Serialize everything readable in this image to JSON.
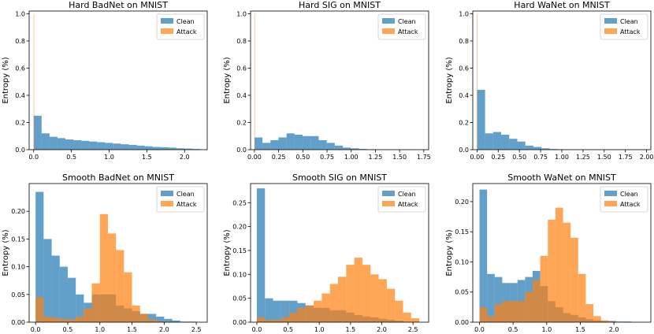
{
  "colors": {
    "clean": "#1f77b4",
    "attack": "#ff7f0e"
  },
  "chart_data": [
    {
      "type": "histogram",
      "title": "Hard BadNet on MNIST",
      "ylabel": "Entropy (%)",
      "xlim": [
        -0.06,
        2.3
      ],
      "ylim": [
        0,
        1.02
      ],
      "xticks": [
        "0.0",
        "0.5",
        "1.0",
        "1.5",
        "2.0"
      ],
      "xtick_values": [
        0,
        0.5,
        1.0,
        1.5,
        2.0
      ],
      "yticks": [
        "0.0",
        "0.2",
        "0.4",
        "0.6",
        "0.8",
        "1.0"
      ],
      "ytick_values": [
        0,
        0.2,
        0.4,
        0.6,
        0.8,
        1.0
      ],
      "legend": [
        "Clean",
        "Attack"
      ],
      "series": [
        {
          "name": "Clean",
          "bin_start": 0.0,
          "bin_width": 0.105,
          "values": [
            0.25,
            0.12,
            0.095,
            0.085,
            0.075,
            0.07,
            0.065,
            0.06,
            0.055,
            0.05,
            0.045,
            0.04,
            0.035,
            0.03,
            0.025,
            0.02,
            0.018,
            0.015,
            0.01,
            0.008,
            0.005
          ]
        },
        {
          "name": "Attack",
          "bin_start": 0.0,
          "bin_width": 0.005,
          "values": [
            1.0
          ]
        }
      ]
    },
    {
      "type": "histogram",
      "title": "Hard SIG on MNIST",
      "ylabel": "Entropy (%)",
      "xlim": [
        -0.04,
        1.8
      ],
      "ylim": [
        0,
        1.02
      ],
      "xticks": [
        "0.00",
        "0.25",
        "0.50",
        "0.75",
        "1.00",
        "1.25",
        "1.50",
        "1.75"
      ],
      "xtick_values": [
        0,
        0.25,
        0.5,
        0.75,
        1.0,
        1.25,
        1.5,
        1.75
      ],
      "yticks": [
        "0.0",
        "0.2",
        "0.4",
        "0.6",
        "0.8",
        "1.0"
      ],
      "ytick_values": [
        0,
        0.2,
        0.4,
        0.6,
        0.8,
        1.0
      ],
      "legend": [
        "Clean",
        "Attack"
      ],
      "series": [
        {
          "name": "Clean",
          "bin_start": 0.0,
          "bin_width": 0.083,
          "values": [
            0.09,
            0.05,
            0.07,
            0.09,
            0.12,
            0.11,
            0.1,
            0.1,
            0.07,
            0.05,
            0.03,
            0.015,
            0.01,
            0.005,
            0.003,
            0.002,
            0.001,
            0.001,
            0.001,
            0.001
          ]
        },
        {
          "name": "Attack",
          "bin_start": 0.0,
          "bin_width": 0.004,
          "values": [
            1.0
          ]
        }
      ]
    },
    {
      "type": "histogram",
      "title": "Hard WaNet on MNIST",
      "ylabel": "Entropy (%)",
      "xlim": [
        -0.05,
        2.05
      ],
      "ylim": [
        0,
        1.02
      ],
      "xticks": [
        "0.00",
        "0.25",
        "0.50",
        "0.75",
        "1.00",
        "1.25",
        "1.50",
        "1.75",
        "2.00"
      ],
      "xtick_values": [
        0,
        0.25,
        0.5,
        0.75,
        1.0,
        1.25,
        1.5,
        1.75,
        2.0
      ],
      "yticks": [
        "0.0",
        "0.2",
        "0.4",
        "0.6",
        "0.8",
        "1.0"
      ],
      "ytick_values": [
        0,
        0.2,
        0.4,
        0.6,
        0.8,
        1.0
      ],
      "legend": [
        "Clean",
        "Attack"
      ],
      "series": [
        {
          "name": "Clean",
          "bin_start": 0.0,
          "bin_width": 0.095,
          "values": [
            0.44,
            0.12,
            0.13,
            0.11,
            0.08,
            0.06,
            0.03,
            0.02,
            0.01,
            0.005,
            0.003,
            0.002,
            0.001,
            0.001,
            0.001,
            0.001,
            0.001,
            0.001,
            0.001,
            0.001,
            0.001
          ]
        },
        {
          "name": "Attack",
          "bin_start": 0.0,
          "bin_width": 0.005,
          "values": [
            1.0
          ]
        }
      ]
    },
    {
      "type": "histogram",
      "title": "Smooth BadNet on MNIST",
      "ylabel": "Entropy (%)",
      "xlim": [
        -0.1,
        2.67
      ],
      "ylim": [
        0,
        0.25
      ],
      "xticks": [
        "0.0",
        "0.5",
        "1.0",
        "1.5",
        "2.0",
        "2.5"
      ],
      "xtick_values": [
        0,
        0.5,
        1.0,
        1.5,
        2.0,
        2.5
      ],
      "yticks": [
        "0.00",
        "0.05",
        "0.10",
        "0.15",
        "0.20"
      ],
      "ytick_values": [
        0,
        0.05,
        0.1,
        0.15,
        0.2
      ],
      "legend": [
        "Clean",
        "Attack"
      ],
      "series": [
        {
          "name": "Clean",
          "bin_start": 0.0,
          "bin_width": 0.125,
          "values": [
            0.235,
            0.15,
            0.12,
            0.1,
            0.08,
            0.05,
            0.035,
            0.05,
            0.05,
            0.05,
            0.03,
            0.025,
            0.02,
            0.015,
            0.015,
            0.01,
            0.006,
            0.003,
            0.001,
            0.001
          ]
        },
        {
          "name": "Attack",
          "bin_start": 0.0,
          "bin_width": 0.125,
          "values": [
            0.045,
            0.01,
            0.008,
            0.006,
            0.005,
            0.01,
            0.025,
            0.07,
            0.195,
            0.16,
            0.13,
            0.09,
            0.03,
            0.015,
            0.005,
            0.002,
            0.001,
            0.0,
            0.0,
            0.0
          ]
        }
      ]
    },
    {
      "type": "histogram",
      "title": "Smooth SIG on MNIST",
      "ylabel": "Entropy (%)",
      "xlim": [
        -0.1,
        2.75
      ],
      "ylim": [
        0,
        0.29
      ],
      "xticks": [
        "0.0",
        "0.5",
        "1.0",
        "1.5",
        "2.0",
        "2.5"
      ],
      "xtick_values": [
        0,
        0.5,
        1.0,
        1.5,
        2.0,
        2.5
      ],
      "yticks": [
        "0.00",
        "0.05",
        "0.10",
        "0.15",
        "0.20",
        "0.25"
      ],
      "ytick_values": [
        0,
        0.05,
        0.1,
        0.15,
        0.2,
        0.25
      ],
      "legend": [
        "Clean",
        "Attack"
      ],
      "series": [
        {
          "name": "Clean",
          "bin_start": 0.0,
          "bin_width": 0.13,
          "values": [
            0.28,
            0.05,
            0.045,
            0.045,
            0.045,
            0.04,
            0.035,
            0.03,
            0.03,
            0.025,
            0.025,
            0.02,
            0.015,
            0.012,
            0.01,
            0.007,
            0.005,
            0.003,
            0.001,
            0.001
          ]
        },
        {
          "name": "Attack",
          "bin_start": 0.0,
          "bin_width": 0.13,
          "values": [
            0.01,
            0.005,
            0.005,
            0.01,
            0.02,
            0.03,
            0.035,
            0.045,
            0.06,
            0.08,
            0.095,
            0.12,
            0.135,
            0.12,
            0.1,
            0.09,
            0.07,
            0.045,
            0.02,
            0.008
          ]
        }
      ]
    },
    {
      "type": "histogram",
      "title": "Smooth WaNet on MNIST",
      "ylabel": "Entropy (%)",
      "xlim": [
        -0.1,
        2.55
      ],
      "ylim": [
        0,
        0.23
      ],
      "xticks": [
        "0.0",
        "0.5",
        "1.0",
        "1.5",
        "2.0"
      ],
      "xtick_values": [
        0,
        0.5,
        1.0,
        1.5,
        2.0
      ],
      "yticks": [
        "0.00",
        "0.05",
        "0.10",
        "0.15",
        "0.20"
      ],
      "ytick_values": [
        0,
        0.05,
        0.1,
        0.15,
        0.2
      ],
      "legend": [
        "Clean",
        "Attack"
      ],
      "series": [
        {
          "name": "Clean",
          "bin_start": 0.0,
          "bin_width": 0.113,
          "values": [
            0.22,
            0.08,
            0.075,
            0.065,
            0.065,
            0.07,
            0.075,
            0.085,
            0.06,
            0.035,
            0.025,
            0.015,
            0.012,
            0.008,
            0.005,
            0.003,
            0.002,
            0.002,
            0.001,
            0.001
          ]
        },
        {
          "name": "Attack",
          "bin_start": 0.0,
          "bin_width": 0.113,
          "values": [
            0.025,
            0.01,
            0.03,
            0.035,
            0.035,
            0.035,
            0.05,
            0.07,
            0.11,
            0.17,
            0.19,
            0.165,
            0.14,
            0.08,
            0.03,
            0.01,
            0.003,
            0.001,
            0.0,
            0.0
          ]
        }
      ]
    }
  ]
}
